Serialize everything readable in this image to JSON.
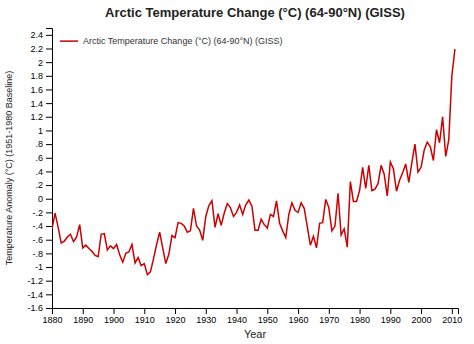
{
  "chart_data": {
    "type": "line",
    "title": "Arctic Temperature Change (°C) (64-90°N) (GISS)",
    "xlabel": "Year",
    "ylabel": "Temperature Anomaly (°C) (1951-1980 Baseline)",
    "x": [
      1880,
      1881,
      1882,
      1883,
      1884,
      1885,
      1886,
      1887,
      1888,
      1889,
      1890,
      1891,
      1892,
      1893,
      1894,
      1895,
      1896,
      1897,
      1898,
      1899,
      1900,
      1901,
      1902,
      1903,
      1904,
      1905,
      1906,
      1907,
      1908,
      1909,
      1910,
      1911,
      1912,
      1913,
      1914,
      1915,
      1916,
      1917,
      1918,
      1919,
      1920,
      1921,
      1922,
      1923,
      1924,
      1925,
      1926,
      1927,
      1928,
      1929,
      1930,
      1931,
      1932,
      1933,
      1934,
      1935,
      1936,
      1937,
      1938,
      1939,
      1940,
      1941,
      1942,
      1943,
      1944,
      1945,
      1946,
      1947,
      1948,
      1949,
      1950,
      1951,
      1952,
      1953,
      1954,
      1955,
      1956,
      1957,
      1958,
      1959,
      1960,
      1961,
      1962,
      1963,
      1964,
      1965,
      1966,
      1967,
      1968,
      1969,
      1970,
      1971,
      1972,
      1973,
      1974,
      1975,
      1976,
      1977,
      1978,
      1979,
      1980,
      1981,
      1982,
      1983,
      1984,
      1985,
      1986,
      1987,
      1988,
      1989,
      1990,
      1991,
      1992,
      1993,
      1994,
      1995,
      1996,
      1997,
      1998,
      1999,
      2000,
      2001,
      2002,
      2003,
      2004,
      2005,
      2006,
      2007,
      2008,
      2009,
      2010,
      2011
    ],
    "series": [
      {
        "name": "Arctic Temperature Change (°C) (64-90°N) (GISS)",
        "color": "#cc0000",
        "values": [
          -0.44,
          -0.21,
          -0.42,
          -0.65,
          -0.62,
          -0.56,
          -0.52,
          -0.63,
          -0.56,
          -0.38,
          -0.72,
          -0.68,
          -0.73,
          -0.77,
          -0.83,
          -0.85,
          -0.52,
          -0.51,
          -0.75,
          -0.69,
          -0.73,
          -0.67,
          -0.82,
          -0.93,
          -0.8,
          -0.78,
          -0.67,
          -0.94,
          -0.86,
          -0.98,
          -0.95,
          -1.11,
          -1.07,
          -0.88,
          -0.67,
          -0.49,
          -0.72,
          -0.95,
          -0.81,
          -0.54,
          -0.57,
          -0.35,
          -0.36,
          -0.4,
          -0.49,
          -0.47,
          -0.14,
          -0.4,
          -0.46,
          -0.61,
          -0.26,
          -0.1,
          -0.03,
          -0.42,
          -0.22,
          -0.39,
          -0.21,
          -0.07,
          -0.13,
          -0.26,
          -0.2,
          -0.09,
          -0.23,
          -0.09,
          -0.02,
          -0.11,
          -0.46,
          -0.46,
          -0.3,
          -0.38,
          -0.43,
          -0.23,
          -0.26,
          -0.03,
          -0.36,
          -0.47,
          -0.57,
          -0.23,
          -0.06,
          -0.17,
          -0.2,
          -0.06,
          -0.14,
          -0.41,
          -0.68,
          -0.55,
          -0.72,
          -0.36,
          -0.35,
          -0.01,
          -0.13,
          -0.47,
          -0.4,
          0.08,
          -0.53,
          -0.44,
          -0.71,
          0.25,
          -0.04,
          -0.04,
          0.12,
          0.46,
          0.15,
          0.49,
          0.12,
          0.14,
          0.22,
          0.49,
          0.36,
          0.04,
          0.54,
          0.44,
          0.11,
          0.27,
          0.38,
          0.51,
          0.24,
          0.53,
          0.8,
          0.39,
          0.46,
          0.71,
          0.83,
          0.76,
          0.56,
          1.01,
          0.82,
          1.2,
          0.62,
          0.86,
          1.8,
          2.19
        ]
      }
    ],
    "xlim": [
      1880,
      2012
    ],
    "ylim": [
      -1.6,
      2.5
    ],
    "xticks": [
      1880,
      1890,
      1900,
      1910,
      1920,
      1930,
      1940,
      1950,
      1960,
      1970,
      1980,
      1990,
      2000,
      2010
    ],
    "yticks": [
      -1.6,
      -1.4,
      -1.2,
      -1,
      {
        "value": -0.8,
        "label": "-.8"
      },
      {
        "value": -0.6,
        "label": "-.6"
      },
      {
        "value": -0.4,
        "label": "-.4"
      },
      {
        "value": -0.2,
        "label": "-.2"
      },
      0,
      {
        "value": 0.2,
        "label": ".2"
      },
      {
        "value": 0.4,
        "label": ".4"
      },
      {
        "value": 0.6,
        "label": ".6"
      },
      {
        "value": 0.8,
        "label": ".8"
      },
      1,
      1.2,
      1.4,
      1.6,
      1.8,
      2,
      2.2,
      2.4
    ],
    "grid": false,
    "legend": "top-left"
  }
}
